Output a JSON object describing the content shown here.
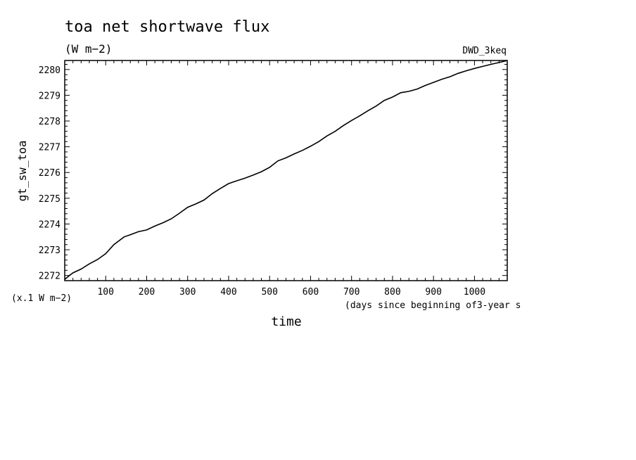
{
  "chart_data": {
    "type": "line",
    "title": "toa net shortwave flux",
    "subtitle": "(W m−2)",
    "tag": "DWD_3keq",
    "ylabel": "gt_sw_toa",
    "yunit": "(x.1 W m−2)",
    "xlabel": "time",
    "xunit": "(days since beginning of3-year s",
    "xlim": [
      0,
      1080
    ],
    "ylim": [
      2271.8,
      2280.35
    ],
    "xticks": [
      100,
      200,
      300,
      400,
      500,
      600,
      700,
      800,
      900,
      1000
    ],
    "xticklabels": [
      "100",
      "200",
      "300",
      "400",
      "500",
      "600",
      "700",
      "800",
      "900",
      "1000"
    ],
    "yticks": [
      2272,
      2273,
      2274,
      2275,
      2276,
      2277,
      2278,
      2279,
      2280
    ],
    "yticklabels": [
      "2272",
      "2273",
      "2274",
      "2275",
      "2276",
      "2277",
      "2278",
      "2279",
      "2280"
    ],
    "grid": false,
    "series": [
      {
        "x": [
          0,
          10,
          20,
          40,
          60,
          80,
          100,
          120,
          145,
          160,
          180,
          200,
          220,
          240,
          260,
          280,
          300,
          320,
          340,
          360,
          380,
          400,
          420,
          440,
          460,
          480,
          500,
          520,
          540,
          560,
          580,
          600,
          620,
          640,
          660,
          680,
          700,
          720,
          740,
          760,
          780,
          800,
          820,
          840,
          860,
          880,
          900,
          920,
          940,
          960,
          980,
          1000,
          1020,
          1040,
          1060,
          1080
        ],
        "y": [
          2271.85,
          2271.98,
          2272.1,
          2272.25,
          2272.45,
          2272.62,
          2272.85,
          2273.2,
          2273.5,
          2273.58,
          2273.7,
          2273.77,
          2273.92,
          2274.05,
          2274.2,
          2274.42,
          2274.65,
          2274.78,
          2274.93,
          2275.18,
          2275.38,
          2275.57,
          2275.68,
          2275.78,
          2275.9,
          2276.03,
          2276.2,
          2276.45,
          2276.57,
          2276.72,
          2276.86,
          2277.02,
          2277.2,
          2277.42,
          2277.6,
          2277.82,
          2278.02,
          2278.2,
          2278.4,
          2278.58,
          2278.8,
          2278.93,
          2279.1,
          2279.15,
          2279.24,
          2279.38,
          2279.5,
          2279.62,
          2279.72,
          2279.85,
          2279.95,
          2280.04,
          2280.12,
          2280.2,
          2280.27,
          2280.35
        ]
      }
    ]
  }
}
